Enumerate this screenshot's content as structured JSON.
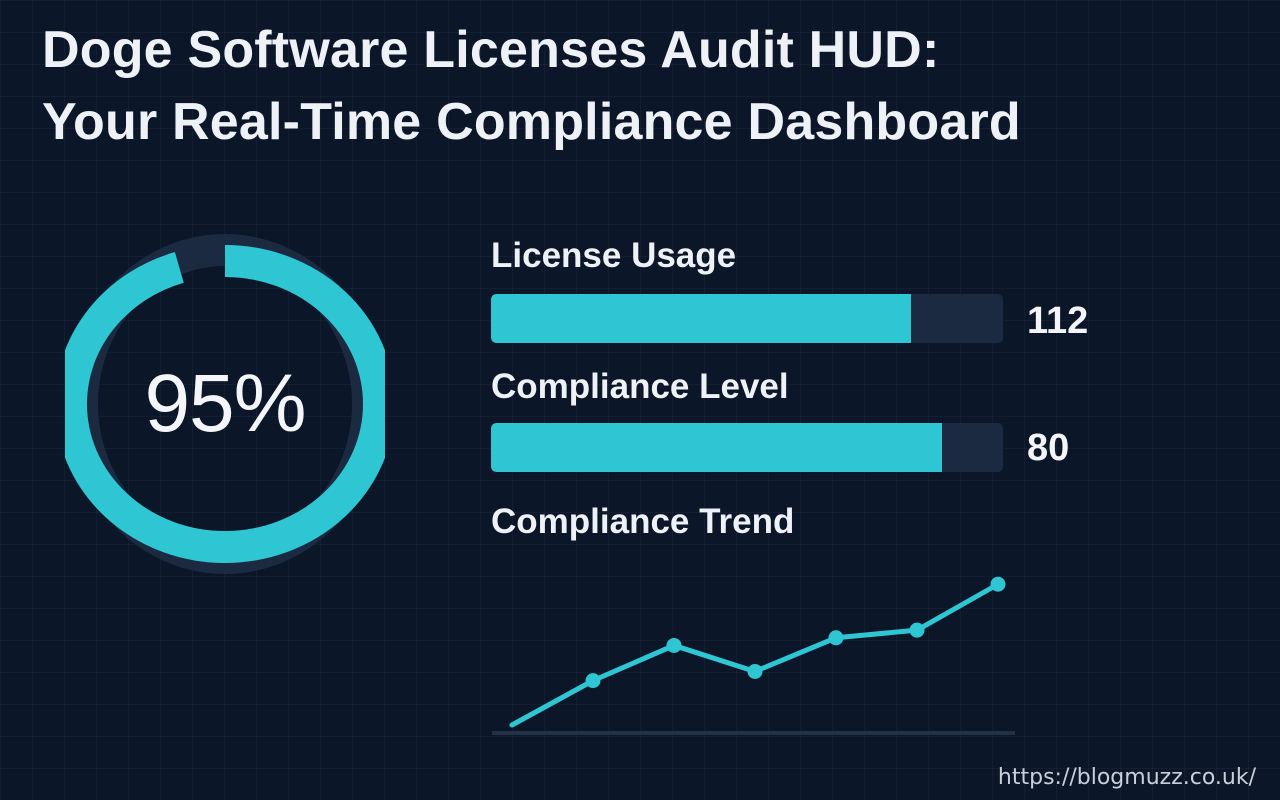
{
  "header": {
    "title_line1": "Doge Software Licenses Audit HUD:",
    "title_line2": "Your Real-Time Compliance Dashboard"
  },
  "gauge": {
    "value_text": "95%",
    "fraction": 0.95,
    "color": "#2ec6d3"
  },
  "metrics": {
    "license_usage": {
      "label": "License Usage",
      "value": "112",
      "fill_fraction": 0.82
    },
    "compliance_level": {
      "label": "Compliance Level",
      "value": "80",
      "fill_fraction": 0.88
    }
  },
  "trend": {
    "label": "Compliance Trend"
  },
  "chart_data": {
    "type": "line",
    "title": "Compliance Trend",
    "xlabel": "",
    "ylabel": "",
    "x": [
      1,
      2,
      3,
      4,
      5,
      6,
      7
    ],
    "series": [
      {
        "values": [
          0,
          29,
          52,
          35,
          57,
          62,
          92
        ],
        "markers": [
          false,
          true,
          true,
          true,
          true,
          true,
          true
        ]
      }
    ],
    "ylim": [
      0,
      100
    ],
    "grid": false,
    "color": "#2ec6d3",
    "baseline_color": "#243249"
  },
  "footer": {
    "url": "https://blogmuzz.co.uk/"
  }
}
